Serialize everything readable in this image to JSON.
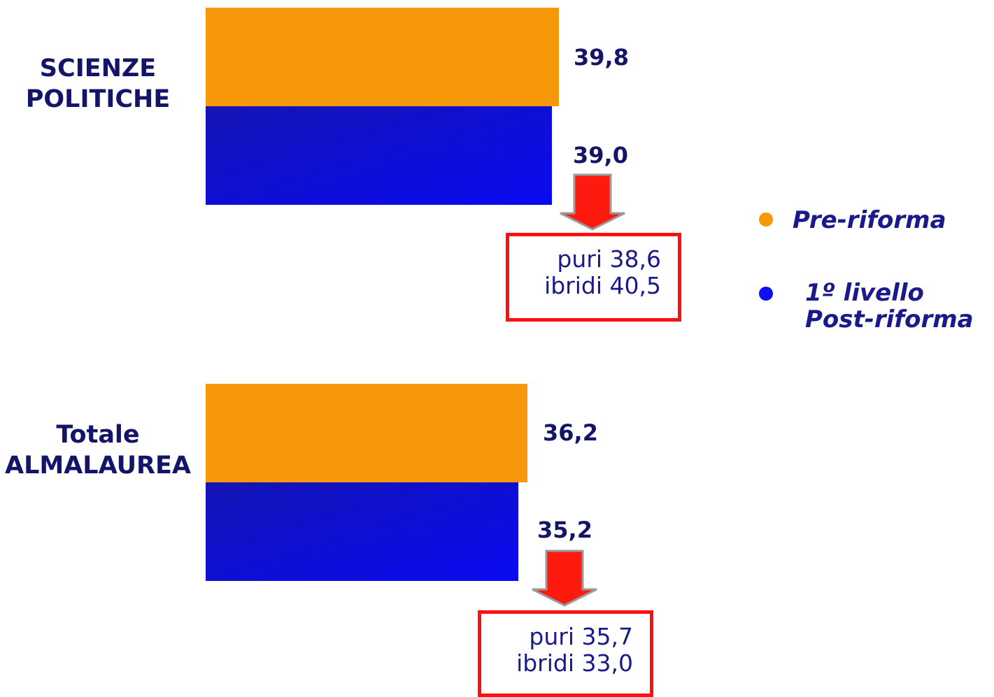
{
  "colors": {
    "pre_riforma": "#f7980a",
    "post_riforma": "#1010ee",
    "arrow": "#ff1a10",
    "box_border": "#ff1010",
    "label_text": "#141468"
  },
  "chart_data": {
    "type": "bar",
    "orientation": "horizontal",
    "categories": [
      "SCIENZE\nPOLITICHE",
      "Totale\nALMALAUREA"
    ],
    "series": [
      {
        "name": "Pre-riforma",
        "values": [
          39.8,
          36.2
        ],
        "labels": [
          "39,8",
          "36,2"
        ]
      },
      {
        "name": "1º livello\nPost-riforma",
        "values": [
          39.0,
          35.2
        ],
        "labels": [
          "39,0",
          "35,2"
        ]
      }
    ],
    "annotations": [
      {
        "category": "SCIENZE\nPOLITICHE",
        "lines": [
          "puri 38,6",
          "ibridi 40,5"
        ]
      },
      {
        "category": "Totale\nALMALAUREA",
        "lines": [
          "puri 35,7",
          "ibridi 33,0"
        ]
      }
    ],
    "legend": "right",
    "grid": false
  }
}
